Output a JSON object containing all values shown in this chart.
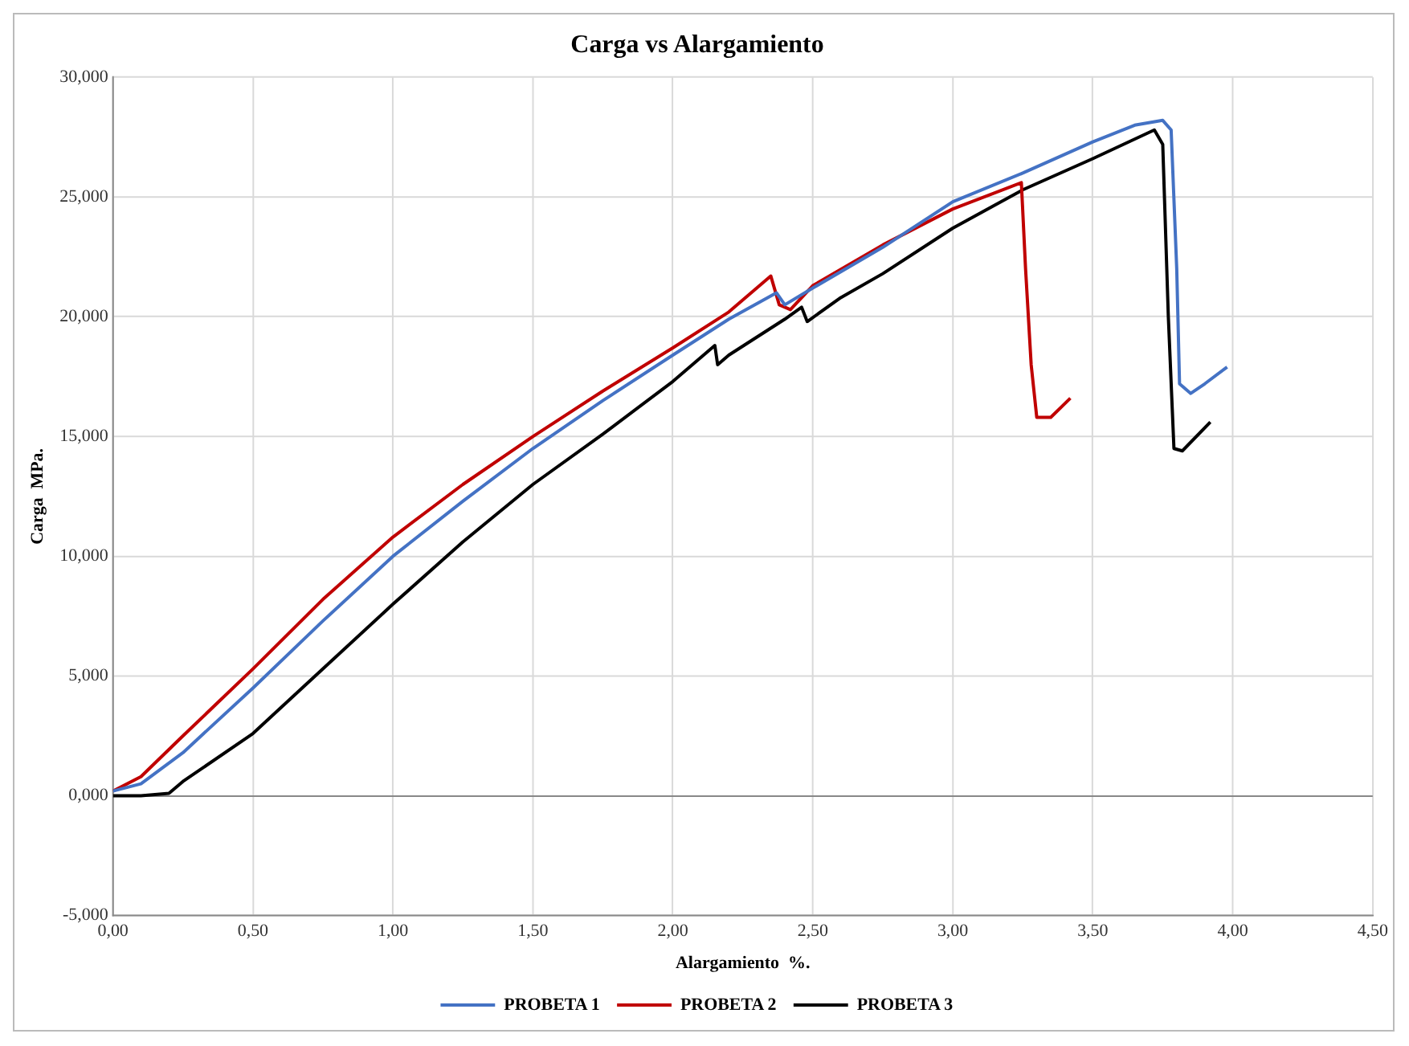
{
  "chart_data": {
    "type": "line",
    "title": "Carga vs Alargamiento",
    "xlabel": "Alargamiento  %.",
    "ylabel": "Carga  MPa.",
    "xlim": [
      0,
      4.5
    ],
    "xticks": [
      {
        "value": 0,
        "label": "0,00"
      },
      {
        "value": 0.5,
        "label": "0,50"
      },
      {
        "value": 1,
        "label": "1,00"
      },
      {
        "value": 1.5,
        "label": "1,50"
      },
      {
        "value": 2,
        "label": "2,00"
      },
      {
        "value": 2.5,
        "label": "2,50"
      },
      {
        "value": 3,
        "label": "3,00"
      },
      {
        "value": 3.5,
        "label": "3,50"
      },
      {
        "value": 4,
        "label": "4,00"
      },
      {
        "value": 4.5,
        "label": "4,50"
      }
    ],
    "ylim": [
      -5,
      30
    ],
    "yticks": [
      {
        "value": -5,
        "label": "-5,000"
      },
      {
        "value": 0,
        "label": "0,000"
      },
      {
        "value": 5,
        "label": "5,000"
      },
      {
        "value": 10,
        "label": "10,000"
      },
      {
        "value": 15,
        "label": "15,000"
      },
      {
        "value": 20,
        "label": "20,000"
      },
      {
        "value": 25,
        "label": "25,000"
      },
      {
        "value": 30,
        "label": "30,000"
      }
    ],
    "grid": true,
    "legend": "bottom",
    "marker": "none",
    "line_style": "solid",
    "series": [
      {
        "name": "PROBETA 1",
        "color": "#4472c4",
        "x": [
          0,
          0.1,
          0.25,
          0.5,
          0.75,
          1.0,
          1.25,
          1.5,
          1.75,
          2.0,
          2.2,
          2.37,
          2.4,
          2.5,
          2.75,
          3.0,
          3.25,
          3.5,
          3.65,
          3.75,
          3.78,
          3.8,
          3.81,
          3.85,
          3.9,
          3.98
        ],
        "values": [
          0.2,
          0.5,
          1.8,
          4.5,
          7.3,
          10.0,
          12.3,
          14.5,
          16.5,
          18.4,
          19.9,
          21.0,
          20.5,
          21.2,
          22.9,
          24.8,
          26.0,
          27.3,
          28.0,
          28.2,
          27.8,
          22,
          17.2,
          16.8,
          17.2,
          17.9
        ]
      },
      {
        "name": "PROBETA 2",
        "color": "#c00000",
        "x": [
          0,
          0.1,
          0.25,
          0.5,
          0.75,
          1.0,
          1.25,
          1.5,
          1.75,
          2.0,
          2.2,
          2.35,
          2.38,
          2.42,
          2.5,
          2.75,
          3.0,
          3.245,
          3.26,
          3.28,
          3.3,
          3.35,
          3.42
        ],
        "values": [
          0.2,
          0.8,
          2.5,
          5.3,
          8.2,
          10.8,
          13.0,
          15.0,
          16.9,
          18.7,
          20.2,
          21.7,
          20.5,
          20.3,
          21.3,
          23.0,
          24.5,
          25.6,
          22,
          18,
          15.8,
          15.8,
          16.6
        ]
      },
      {
        "name": "PROBETA 3",
        "color": "#000000",
        "x": [
          0,
          0.1,
          0.2,
          0.25,
          0.5,
          0.75,
          1.0,
          1.25,
          1.5,
          1.75,
          2.0,
          2.15,
          2.16,
          2.2,
          2.4,
          2.46,
          2.48,
          2.6,
          2.75,
          3.0,
          3.25,
          3.5,
          3.72,
          3.75,
          3.77,
          3.79,
          3.82,
          3.92
        ],
        "values": [
          0,
          0,
          0.1,
          0.6,
          2.6,
          5.3,
          8.0,
          10.6,
          13.0,
          15.1,
          17.3,
          18.8,
          18.0,
          18.4,
          19.9,
          20.4,
          19.8,
          20.8,
          21.8,
          23.7,
          25.3,
          26.6,
          27.8,
          27.2,
          20,
          14.5,
          14.4,
          15.6
        ]
      }
    ]
  }
}
